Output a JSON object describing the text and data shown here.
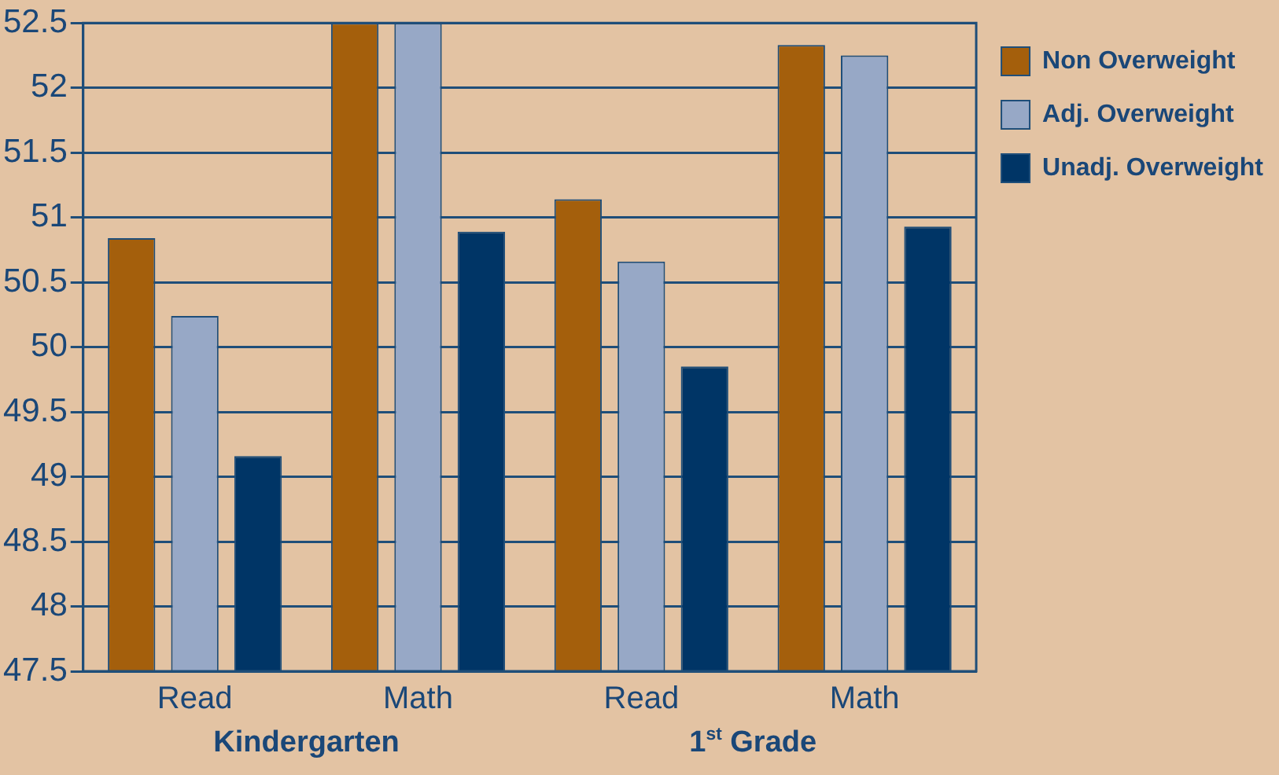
{
  "chart_data": {
    "type": "bar",
    "categories": [
      "Read",
      "Math",
      "Read",
      "Math"
    ],
    "series": [
      {
        "name": "Non Overweight",
        "color": "#a45f0c",
        "values": [
          50.84,
          52.5,
          51.14,
          52.33
        ]
      },
      {
        "name": "Adj. Overweight",
        "color": "#97a8c6",
        "values": [
          50.24,
          52.5,
          50.66,
          52.25
        ]
      },
      {
        "name": "Unadj. Overweight",
        "color": "#003566",
        "values": [
          49.16,
          50.89,
          49.85,
          50.93
        ]
      }
    ],
    "ylim": [
      47.5,
      52.5
    ],
    "yticks": [
      47.5,
      48,
      48.5,
      49,
      49.5,
      50,
      50.5,
      51,
      51.5,
      52,
      52.5
    ],
    "grid": "y",
    "legend": "top right",
    "annotations": [
      "Kindergarten",
      "1$^{st}$ Grade"
    ]
  }
}
